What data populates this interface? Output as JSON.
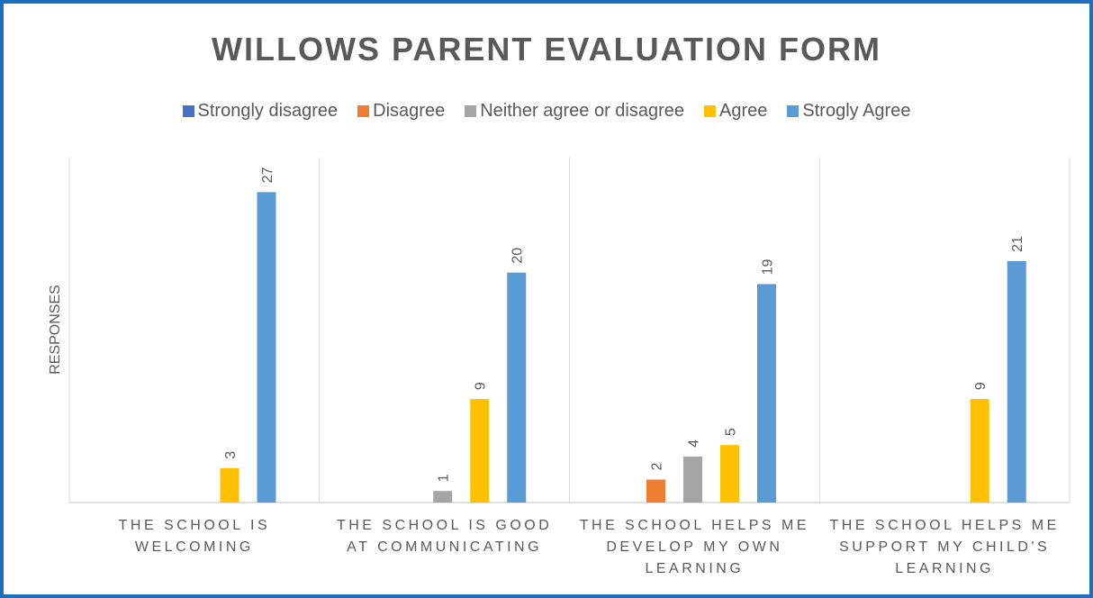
{
  "chart_data": {
    "type": "bar",
    "title": "WILLOWS PARENT EVALUATION FORM",
    "y_label": "RESPONSES",
    "categories": [
      "THE SCHOOL IS WELCOMING",
      "THE SCHOOL IS GOOD AT COMMUNICATING",
      "THE SCHOOL HELPS ME DEVELOP MY OWN LEARNING",
      "THE SCHOOL HELPS ME SUPPORT MY CHILD'S LEARNING"
    ],
    "series": [
      {
        "name": "Strongly disagree",
        "color": "#4472c4",
        "values": [
          null,
          null,
          null,
          null
        ]
      },
      {
        "name": "Disagree",
        "color": "#ed7d31",
        "values": [
          null,
          null,
          2,
          null
        ]
      },
      {
        "name": "Neither agree or disagree",
        "color": "#a5a5a5",
        "values": [
          null,
          1,
          4,
          null
        ]
      },
      {
        "name": "Agree",
        "color": "#ffc000",
        "values": [
          3,
          9,
          5,
          9
        ]
      },
      {
        "name": "Strogly Agree",
        "color": "#5b9bd5",
        "values": [
          27,
          20,
          19,
          21
        ]
      }
    ],
    "ylim": [
      0,
      30
    ],
    "legend": "top"
  }
}
